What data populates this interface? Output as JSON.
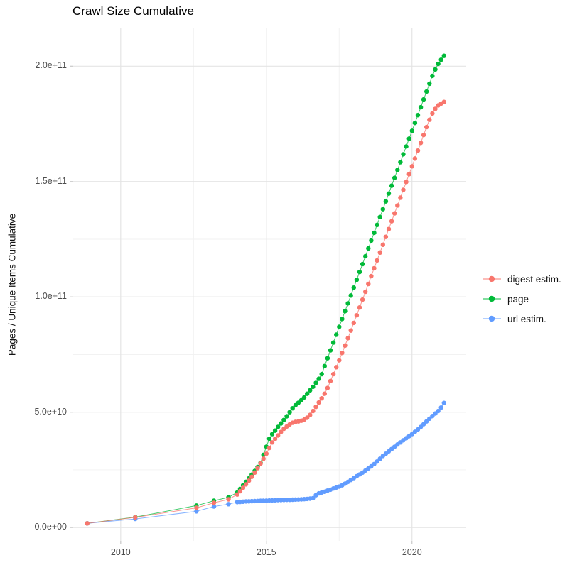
{
  "title": "Crawl Size Cumulative",
  "y_axis_title": "Pages / Unique Items Cumulative",
  "legend": {
    "position": "right",
    "items": [
      {
        "label": "digest estim.",
        "color": "#F8766D"
      },
      {
        "label": "page",
        "color": "#00BA38"
      },
      {
        "label": "url estim.",
        "color": "#619CFF"
      }
    ]
  },
  "chart_data": {
    "type": "scatter",
    "title": "Crawl Size Cumulative",
    "xlabel": "",
    "ylabel": "Pages / Unique Items Cumulative",
    "x_unit": "year (decimal)",
    "y_unit": "items, values stored in billions (1e9)",
    "grid": true,
    "legend_position": "right",
    "xlim": [
      2008.37,
      2021.86
    ],
    "ylim_e9": [
      -5.8,
      216.4
    ],
    "x_ticks": [
      {
        "value": 2010,
        "label": "2010"
      },
      {
        "value": 2015,
        "label": "2015"
      },
      {
        "value": 2020,
        "label": "2020"
      }
    ],
    "x_minor": [
      2012.5,
      2017.5
    ],
    "y_ticks": [
      {
        "value_e9": 0,
        "label": "0.0e+00"
      },
      {
        "value_e9": 50,
        "label": "5.0e+10"
      },
      {
        "value_e9": 100,
        "label": "1.0e+11"
      },
      {
        "value_e9": 150,
        "label": "1.5e+11"
      },
      {
        "value_e9": 200,
        "label": "2.0e+11"
      }
    ],
    "y_minor_e9": [
      25,
      75,
      125,
      175
    ],
    "colors": {
      "grid_major": "#e4e4e4",
      "grid_minor": "#f1f1f1",
      "tick_mark": "#c8c8c8",
      "tick_text": "#4d4d4d"
    },
    "point_radius": 3.2,
    "line_width": 1,
    "draw_order": [
      "page",
      "url estim.",
      "digest estim."
    ],
    "series": [
      {
        "name": "digest estim.",
        "color": "#F8766D",
        "points_year_billions": [
          [
            2008.85,
            1.8
          ],
          [
            2010.5,
            4.4
          ],
          [
            2012.6,
            8.5
          ],
          [
            2013.2,
            10.7
          ],
          [
            2013.7,
            12.2
          ],
          [
            2014.0,
            14.3
          ],
          [
            2014.1,
            15.7
          ],
          [
            2014.2,
            17.2
          ],
          [
            2014.3,
            18.7
          ],
          [
            2014.4,
            20.3
          ],
          [
            2014.5,
            22.0
          ],
          [
            2014.6,
            23.8
          ],
          [
            2014.7,
            25.7
          ],
          [
            2014.8,
            27.7
          ],
          [
            2014.9,
            29.8
          ],
          [
            2015.0,
            32.0
          ],
          [
            2015.1,
            34.5
          ],
          [
            2015.2,
            36.9
          ],
          [
            2015.3,
            38.4
          ],
          [
            2015.4,
            39.9
          ],
          [
            2015.5,
            41.4
          ],
          [
            2015.6,
            42.8
          ],
          [
            2015.7,
            43.8
          ],
          [
            2015.8,
            44.7
          ],
          [
            2015.9,
            45.4
          ],
          [
            2016.0,
            45.8
          ],
          [
            2016.1,
            46.0
          ],
          [
            2016.2,
            46.3
          ],
          [
            2016.3,
            46.8
          ],
          [
            2016.4,
            47.6
          ],
          [
            2016.5,
            48.8
          ],
          [
            2016.6,
            50.5
          ],
          [
            2016.7,
            52.3
          ],
          [
            2016.8,
            54.2
          ],
          [
            2016.9,
            56.0
          ],
          [
            2017.0,
            58.0
          ],
          [
            2017.1,
            60.5
          ],
          [
            2017.2,
            63.5
          ],
          [
            2017.3,
            66.5
          ],
          [
            2017.4,
            69.5
          ],
          [
            2017.5,
            72.5
          ],
          [
            2017.6,
            75.7
          ],
          [
            2017.7,
            78.9
          ],
          [
            2017.8,
            82.1
          ],
          [
            2017.9,
            85.4
          ],
          [
            2018.0,
            88.7
          ],
          [
            2018.1,
            92.0
          ],
          [
            2018.2,
            95.4
          ],
          [
            2018.3,
            98.8
          ],
          [
            2018.4,
            102.2
          ],
          [
            2018.5,
            105.6
          ],
          [
            2018.6,
            109.0
          ],
          [
            2018.7,
            112.4
          ],
          [
            2018.8,
            115.8
          ],
          [
            2018.9,
            119.2
          ],
          [
            2019.0,
            122.6
          ],
          [
            2019.1,
            126.0
          ],
          [
            2019.2,
            129.4
          ],
          [
            2019.3,
            132.8
          ],
          [
            2019.4,
            136.2
          ],
          [
            2019.5,
            139.6
          ],
          [
            2019.6,
            143.0
          ],
          [
            2019.7,
            146.4
          ],
          [
            2019.8,
            149.8
          ],
          [
            2019.9,
            153.2
          ],
          [
            2020.0,
            156.6
          ],
          [
            2020.1,
            160.0
          ],
          [
            2020.2,
            163.4
          ],
          [
            2020.3,
            166.8
          ],
          [
            2020.4,
            170.2
          ],
          [
            2020.5,
            173.6
          ],
          [
            2020.6,
            176.8
          ],
          [
            2020.7,
            179.5
          ],
          [
            2020.8,
            181.5
          ],
          [
            2020.9,
            183.0
          ],
          [
            2021.0,
            183.8
          ],
          [
            2021.1,
            184.5
          ]
        ]
      },
      {
        "name": "page",
        "color": "#00BA38",
        "points_year_billions": [
          [
            2008.85,
            1.8
          ],
          [
            2010.5,
            4.5
          ],
          [
            2012.6,
            9.5
          ],
          [
            2013.2,
            11.6
          ],
          [
            2013.7,
            13.1
          ],
          [
            2014.0,
            15.2
          ],
          [
            2014.1,
            16.7
          ],
          [
            2014.2,
            18.3
          ],
          [
            2014.3,
            19.8
          ],
          [
            2014.4,
            21.3
          ],
          [
            2014.5,
            22.9
          ],
          [
            2014.6,
            24.5
          ],
          [
            2014.7,
            26.2
          ],
          [
            2014.8,
            28.0
          ],
          [
            2014.9,
            31.5
          ],
          [
            2015.0,
            35.0
          ],
          [
            2015.1,
            38.5
          ],
          [
            2015.2,
            40.5
          ],
          [
            2015.3,
            42.0
          ],
          [
            2015.4,
            43.6
          ],
          [
            2015.5,
            45.1
          ],
          [
            2015.6,
            46.6
          ],
          [
            2015.7,
            48.2
          ],
          [
            2015.8,
            50.0
          ],
          [
            2015.9,
            51.7
          ],
          [
            2016.0,
            53.0
          ],
          [
            2016.1,
            54.1
          ],
          [
            2016.2,
            55.2
          ],
          [
            2016.3,
            56.4
          ],
          [
            2016.4,
            58.0
          ],
          [
            2016.5,
            59.5
          ],
          [
            2016.6,
            61.0
          ],
          [
            2016.7,
            62.7
          ],
          [
            2016.8,
            64.5
          ],
          [
            2016.9,
            66.5
          ],
          [
            2017.0,
            70.0
          ],
          [
            2017.1,
            73.4
          ],
          [
            2017.2,
            76.8
          ],
          [
            2017.3,
            80.2
          ],
          [
            2017.4,
            83.6
          ],
          [
            2017.5,
            87.0
          ],
          [
            2017.6,
            90.4
          ],
          [
            2017.7,
            93.8
          ],
          [
            2017.8,
            97.2
          ],
          [
            2017.9,
            100.6
          ],
          [
            2018.0,
            104.0
          ],
          [
            2018.1,
            107.4
          ],
          [
            2018.2,
            110.8
          ],
          [
            2018.3,
            114.2
          ],
          [
            2018.4,
            117.6
          ],
          [
            2018.5,
            121.0
          ],
          [
            2018.6,
            124.4
          ],
          [
            2018.7,
            127.8
          ],
          [
            2018.8,
            131.2
          ],
          [
            2018.9,
            134.6
          ],
          [
            2019.0,
            138.0
          ],
          [
            2019.1,
            141.4
          ],
          [
            2019.2,
            144.8
          ],
          [
            2019.3,
            148.2
          ],
          [
            2019.4,
            151.6
          ],
          [
            2019.5,
            155.0
          ],
          [
            2019.6,
            158.4
          ],
          [
            2019.7,
            161.8
          ],
          [
            2019.8,
            165.2
          ],
          [
            2019.9,
            168.6
          ],
          [
            2020.0,
            172.0
          ],
          [
            2020.1,
            175.4
          ],
          [
            2020.2,
            178.8
          ],
          [
            2020.3,
            182.2
          ],
          [
            2020.4,
            185.6
          ],
          [
            2020.5,
            189.0
          ],
          [
            2020.6,
            192.4
          ],
          [
            2020.7,
            195.8
          ],
          [
            2020.8,
            198.6
          ],
          [
            2020.9,
            201.0
          ],
          [
            2021.0,
            202.8
          ],
          [
            2021.1,
            204.5
          ]
        ]
      },
      {
        "name": "url estim.",
        "color": "#619CFF",
        "points_year_billions": [
          [
            2008.85,
            1.8
          ],
          [
            2010.5,
            3.7
          ],
          [
            2012.6,
            7.0
          ],
          [
            2013.2,
            9.1
          ],
          [
            2013.7,
            10.1
          ],
          [
            2014.0,
            11.0
          ],
          [
            2014.1,
            11.1
          ],
          [
            2014.2,
            11.2
          ],
          [
            2014.3,
            11.3
          ],
          [
            2014.4,
            11.35
          ],
          [
            2014.5,
            11.4
          ],
          [
            2014.6,
            11.45
          ],
          [
            2014.7,
            11.5
          ],
          [
            2014.8,
            11.55
          ],
          [
            2014.9,
            11.6
          ],
          [
            2015.0,
            11.65
          ],
          [
            2015.1,
            11.7
          ],
          [
            2015.2,
            11.75
          ],
          [
            2015.3,
            11.8
          ],
          [
            2015.4,
            11.85
          ],
          [
            2015.5,
            11.9
          ],
          [
            2015.6,
            11.95
          ],
          [
            2015.7,
            12.0
          ],
          [
            2015.8,
            12.0
          ],
          [
            2015.9,
            12.05
          ],
          [
            2016.0,
            12.1
          ],
          [
            2016.1,
            12.15
          ],
          [
            2016.2,
            12.2
          ],
          [
            2016.3,
            12.3
          ],
          [
            2016.4,
            12.4
          ],
          [
            2016.5,
            12.5
          ],
          [
            2016.6,
            12.7
          ],
          [
            2016.7,
            14.0
          ],
          [
            2016.8,
            14.8
          ],
          [
            2016.9,
            15.2
          ],
          [
            2017.0,
            15.5
          ],
          [
            2017.1,
            16.0
          ],
          [
            2017.2,
            16.4
          ],
          [
            2017.3,
            16.9
          ],
          [
            2017.4,
            17.3
          ],
          [
            2017.5,
            17.7
          ],
          [
            2017.6,
            18.3
          ],
          [
            2017.7,
            19.0
          ],
          [
            2017.8,
            19.8
          ],
          [
            2017.9,
            20.6
          ],
          [
            2018.0,
            21.4
          ],
          [
            2018.1,
            22.2
          ],
          [
            2018.2,
            23.0
          ],
          [
            2018.3,
            23.8
          ],
          [
            2018.4,
            24.7
          ],
          [
            2018.5,
            25.6
          ],
          [
            2018.6,
            26.5
          ],
          [
            2018.7,
            27.5
          ],
          [
            2018.8,
            28.6
          ],
          [
            2018.9,
            29.8
          ],
          [
            2019.0,
            31.0
          ],
          [
            2019.1,
            32.0
          ],
          [
            2019.2,
            33.0
          ],
          [
            2019.3,
            34.0
          ],
          [
            2019.4,
            35.0
          ],
          [
            2019.5,
            36.0
          ],
          [
            2019.6,
            36.9
          ],
          [
            2019.7,
            37.8
          ],
          [
            2019.8,
            38.7
          ],
          [
            2019.9,
            39.6
          ],
          [
            2020.0,
            40.5
          ],
          [
            2020.1,
            41.5
          ],
          [
            2020.2,
            42.5
          ],
          [
            2020.3,
            43.6
          ],
          [
            2020.4,
            44.8
          ],
          [
            2020.5,
            46.0
          ],
          [
            2020.6,
            47.2
          ],
          [
            2020.7,
            48.3
          ],
          [
            2020.8,
            49.4
          ],
          [
            2020.9,
            50.5
          ],
          [
            2021.0,
            52.0
          ],
          [
            2021.1,
            54.0
          ]
        ]
      }
    ]
  }
}
